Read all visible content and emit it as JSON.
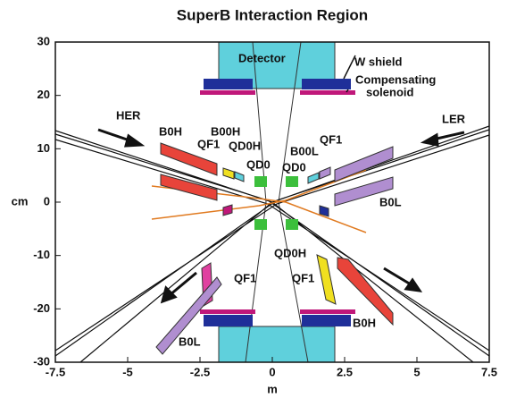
{
  "title": "SuperB Interaction Region",
  "x_label": "m",
  "y_label": "cm",
  "xlim": [
    -7.5,
    7.5
  ],
  "ylim": [
    -30,
    30
  ],
  "xticks": [
    -7.5,
    -5,
    -2.5,
    0,
    2.5,
    5,
    7.5
  ],
  "yticks": [
    -30,
    -20,
    -10,
    0,
    10,
    20,
    30
  ],
  "labels": [
    "Detector",
    "W shield",
    "Compensating",
    "solenoid",
    "HER",
    "LER",
    "B0H",
    "B00H",
    "QF1",
    "QD0H",
    "QD0",
    "QD0",
    "B00L",
    "QF1",
    "B0L",
    "QD0H",
    "QF1",
    "QF1",
    "B0H",
    "B0L"
  ]
}
